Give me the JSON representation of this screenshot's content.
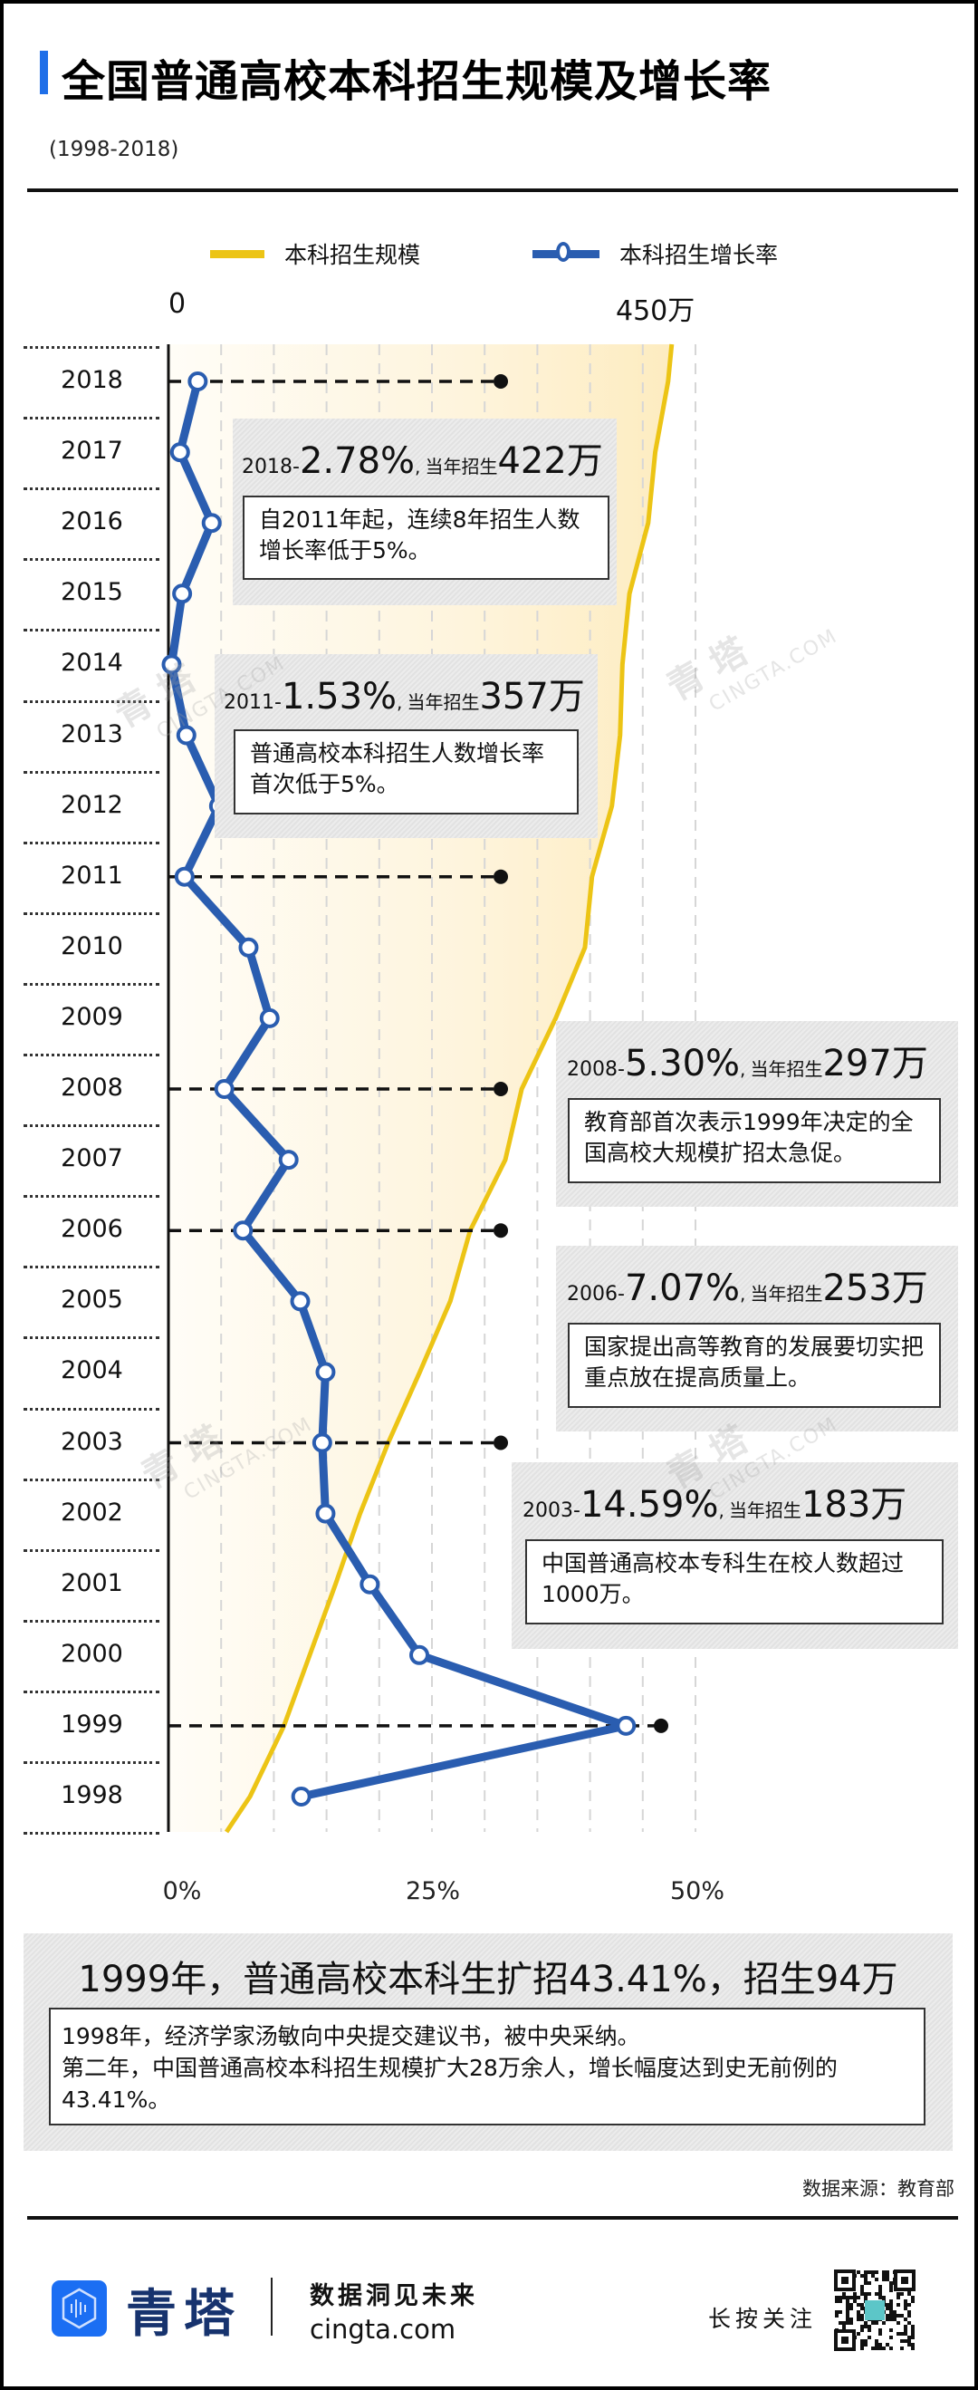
{
  "header": {
    "title": "全国普通高校本科招生规模及增长率",
    "subtitle": "(1998-2018)"
  },
  "legend": {
    "series_scale": "本科招生规模",
    "series_growth": "本科招生增长率"
  },
  "axes": {
    "top_min": "0",
    "top_max": "450万",
    "bottom_ticks": [
      "0%",
      "25%",
      "50%"
    ]
  },
  "colors": {
    "scale_line": "#ecc415",
    "scale_fill": "#fdf1d0",
    "growth_line": "#2a5db0",
    "title_accent": "#1f6fe8",
    "brand_blue": "#1b6ef3",
    "brand_navy": "#17336e"
  },
  "chart_data": {
    "type": "line",
    "title": "全国普通高校本科招生规模及增长率",
    "subtitle": "(1998-2018)",
    "orientation": "horizontal-values, vertical-years",
    "categories": [
      "2018",
      "2017",
      "2016",
      "2015",
      "2014",
      "2013",
      "2012",
      "2011",
      "2010",
      "2009",
      "2008",
      "2007",
      "2006",
      "2005",
      "2004",
      "2003",
      "2002",
      "2001",
      "2000",
      "1999",
      "1998"
    ],
    "series": [
      {
        "name": "本科招生规模",
        "unit": "万",
        "axis": "top",
        "values": [
          422,
          411,
          405,
          389,
          383,
          381,
          374,
          357,
          351,
          326,
          297,
          283,
          253,
          236,
          210,
          183,
          159,
          138,
          116,
          94,
          65
        ]
      },
      {
        "name": "本科招生增长率",
        "unit": "%",
        "axis": "bottom",
        "values": [
          2.78,
          1.1,
          4.1,
          1.3,
          0.3,
          1.7,
          4.8,
          1.53,
          7.6,
          9.6,
          5.3,
          11.4,
          7.07,
          12.5,
          14.9,
          14.59,
          14.9,
          19.1,
          23.8,
          43.41,
          12.6
        ]
      }
    ],
    "top_axis": {
      "min": 0,
      "max": 450,
      "labels": [
        "0",
        "450万"
      ]
    },
    "bottom_axis": {
      "min": 0,
      "max": 50,
      "labels": [
        "0%",
        "25%",
        "50%"
      ],
      "grid_step": 5
    },
    "grid": true,
    "legend_position": "top",
    "highlighted_years": [
      "2018",
      "2011",
      "2008",
      "2006",
      "2003",
      "1999"
    ]
  },
  "annotations": [
    {
      "year": "2018",
      "rate": "2.78%",
      "sep": ",",
      "enroll_label": "当年招生",
      "enroll": "422万",
      "note": "自2011年起，连续8年招生人数增长率低于5%。"
    },
    {
      "year": "2011",
      "rate": "1.53%",
      "sep": ",",
      "enroll_label": "当年招生",
      "enroll": "357万",
      "note": "普通高校本科招生人数增长率首次低于5%。"
    },
    {
      "year": "2008",
      "rate": "5.30%",
      "sep": ",",
      "enroll_label": "当年招生",
      "enroll": "297万",
      "note": "教育部首次表示1999年决定的全国高校大规模扩招太急促。"
    },
    {
      "year": "2006",
      "rate": "7.07%",
      "sep": ",",
      "enroll_label": "当年招生",
      "enroll": "253万",
      "note": "国家提出高等教育的发展要切实把重点放在提高质量上。"
    },
    {
      "year": "2003",
      "rate": "14.59%",
      "sep": ",",
      "enroll_label": "当年招生",
      "enroll": "183万",
      "note": "中国普通高校本专科生在校人数超过1000万。"
    }
  ],
  "summary": {
    "headline": "1999年，普通高校本科生扩招43.41%，招生94万",
    "line1": "1998年，经济学家汤敏向中央提交建议书，被中央采纳。",
    "line2": "第二年，中国普通高校本科招生规模扩大28万余人，增长幅度达到史无前例的43.41%。"
  },
  "source": "数据来源：教育部",
  "footer": {
    "brand": "青塔",
    "tagline": "数据洞见未来",
    "url": "cingta.com",
    "follow": "长按关注"
  },
  "watermark": {
    "cn": "青 塔",
    "en": "CINGTA.COM"
  }
}
